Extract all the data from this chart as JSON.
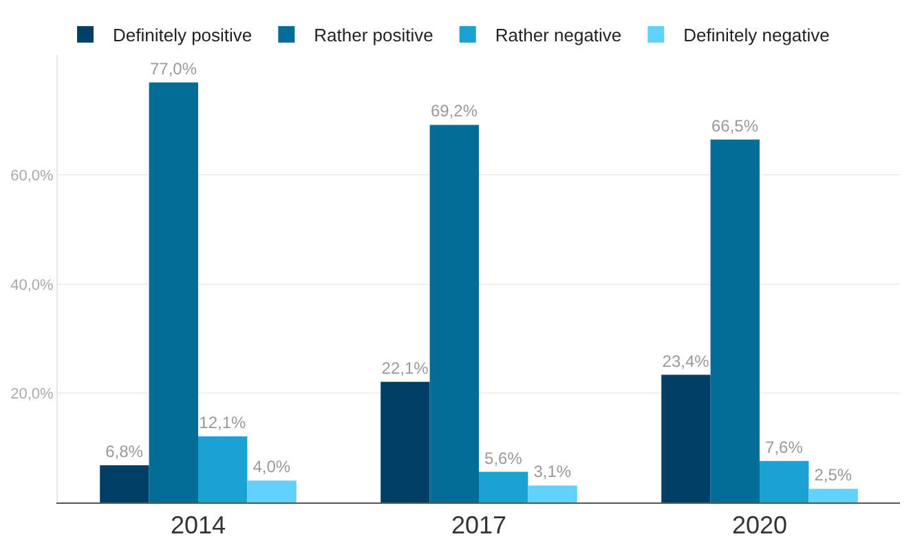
{
  "chart_data": {
    "type": "bar",
    "categories": [
      "2014",
      "2017",
      "2020"
    ],
    "series": [
      {
        "name": "Definitely positive",
        "color": "#003f66",
        "values": [
          6.8,
          22.1,
          23.4
        ],
        "value_labels": [
          "6,8%",
          "22,1%",
          "23,4%"
        ]
      },
      {
        "name": "Rather positive",
        "color": "#036c97",
        "values": [
          77.0,
          69.2,
          66.5
        ],
        "value_labels": [
          "77,0%",
          "69,2%",
          "66,5%"
        ]
      },
      {
        "name": "Rather negative",
        "color": "#1ba1d2",
        "values": [
          12.1,
          5.6,
          7.6
        ],
        "value_labels": [
          "12,1%",
          "5,6%",
          "7,6%"
        ]
      },
      {
        "name": "Definitely negative",
        "color": "#60d1fa",
        "values": [
          4.0,
          3.1,
          2.5
        ],
        "value_labels": [
          "4,0%",
          "3,1%",
          "2,5%"
        ]
      }
    ],
    "yticks": [
      {
        "value": 20,
        "label": "20,0%"
      },
      {
        "value": 40,
        "label": "40,0%"
      },
      {
        "value": 60,
        "label": "60,0%"
      }
    ],
    "ylim": [
      0,
      82
    ],
    "grid": "y",
    "legend": "top left"
  }
}
